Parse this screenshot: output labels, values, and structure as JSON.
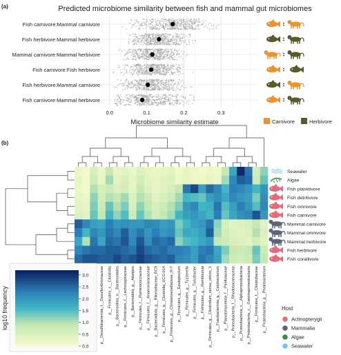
{
  "panel_a": {
    "label": "(a)",
    "chart_data": {
      "type": "scatter",
      "title": "Predicted microbiome similarity between fish and mammal gut microbiomes",
      "xlabel": "Microbiome similarity estimate",
      "ylabel": "",
      "xlim": [
        -0.02,
        0.4
      ],
      "x_ticks": [
        "0.0",
        "0.1",
        "0.2",
        "0.3"
      ],
      "x_tick_values": [
        0.0,
        0.1,
        0.2,
        0.3
      ],
      "grid": true,
      "categories": [
        "Fish carnivore:Mammal carnivore",
        "Fish herbivore:Mammal herbivore",
        "Mammal carnivore:Mammal herbivore",
        "Fish carnivore:Fish herbivore",
        "Fish herbivore:Mammal carnivore",
        "Fish carnivore:Mammal herbivore"
      ],
      "means": [
        0.17,
        0.133,
        0.115,
        0.112,
        0.103,
        0.088
      ],
      "spread_ranges": [
        [
          0.02,
          0.32
        ],
        [
          0.02,
          0.25
        ],
        [
          0.01,
          0.22
        ],
        [
          0.01,
          0.24
        ],
        [
          0.01,
          0.26
        ],
        [
          0.01,
          0.3
        ]
      ],
      "icon_pairs": [
        [
          "fish-carnivore",
          "mammal-carnivore"
        ],
        [
          "fish-herbivore",
          "mammal-herbivore"
        ],
        [
          "mammal-carnivore",
          "mammal-herbivore"
        ],
        [
          "fish-carnivore",
          "fish-herbivore"
        ],
        [
          "fish-herbivore",
          "mammal-carnivore"
        ],
        [
          "fish-carnivore",
          "mammal-herbivore"
        ]
      ],
      "legend": {
        "placement": "bottom-right",
        "entries": [
          {
            "name": "Carnivore",
            "color": "#e8952f"
          },
          {
            "name": "Herbivore",
            "color": "#5b5a2c"
          }
        ]
      }
    }
  },
  "panel_b": {
    "label": "(b)",
    "chart_data": {
      "type": "heatmap",
      "title": "",
      "xlabel": "",
      "ylabel": "",
      "rows": [
        "Seawater",
        "Algae",
        "Fish planktivore",
        "Fish detritivore",
        "Fish omnivore",
        "Fish carnivore",
        "Mammal carnivore",
        "Mammal omnivore",
        "Mammal herbivore",
        "Fish herbivore",
        "Fish corallivore"
      ],
      "row_hosts": [
        "Seawater",
        "Algae",
        "Actinopterygii",
        "Actinopterygii",
        "Actinopterygii",
        "Actinopterygii",
        "Mammalia",
        "Mammalia",
        "Mammalia",
        "Actinopterygii",
        "Actinopterygii"
      ],
      "columns": [
        "p__Bacteroidota_g__Bacteroides",
        "p__Fusobacteriota_g__Fusobacterium",
        "p__Bacteroidota_c__Bacteroidia",
        "p__Desulfobacterota_f__Desulfovibrionaceae",
        "p__Firmicutes_c__Clostridia",
        "p__Bacteroidota_o__Bacteroidales",
        "p__Firmicutes_f__Lachnospiraceae",
        "p__Bacteroidota_g__Alistipes",
        "p__Firmicutes_f__Ruminococcaceae",
        "p__Firmicutes_f__Anaerovoracaceae",
        "p__Bacteroidota_g__Rikenellaceae_RC9",
        "p__Firmicutes_g__Clostridia_UCG-014",
        "p__Firmicutes_g__Christensenellaceae_R-7",
        "p__Firmicutes_g__Epulopiscium",
        "p__Firmicutes_g__Tyzzerella",
        "p__Firmicutes_g__Turicibacter",
        "p__Firmicutes_g__Romboutsia",
        "p__Firmicutes_g__Clostridium_sensu_stricto_1",
        "p__Fusobacteriota_g__Cetobacterium",
        "p__Planctomycetota_f__Pirellulaceae",
        "p__Proteobacteria_f__Rhodobacteraceae",
        "p__Proteobacteria_c__Alphaproteobacteria",
        "p__Proteobacteria_c__Gammaproteobacteria",
        "p__Firmicutes_f__Clostridiaceae",
        "p__Proteobacteria_g__Photobacterium"
      ],
      "values": [
        [
          0.2,
          0.1,
          0.6,
          0.2,
          0.9,
          0.3,
          0.4,
          0.2,
          0.5,
          0.3,
          0.2,
          0.3,
          0.4,
          0.1,
          0.3,
          0.2,
          0.1,
          0.2,
          0.1,
          0.9,
          1.8,
          3.1,
          2.4,
          0.7,
          1.2
        ],
        [
          0.3,
          0.1,
          0.8,
          0.3,
          1.1,
          0.4,
          0.6,
          0.3,
          0.7,
          0.4,
          0.3,
          0.4,
          0.5,
          0.2,
          0.3,
          0.2,
          0.2,
          0.3,
          0.2,
          1.1,
          2.2,
          2.6,
          2.5,
          0.8,
          1.4
        ],
        [
          0.2,
          0.1,
          1.0,
          0.6,
          0.8,
          0.5,
          0.7,
          0.3,
          0.9,
          0.5,
          0.3,
          0.4,
          0.6,
          0.9,
          2.4,
          2.8,
          1.9,
          2.5,
          2.2,
          1.6,
          2.3,
          2.2,
          2.0,
          1.6,
          2.0
        ],
        [
          0.3,
          0.2,
          1.2,
          0.7,
          1.0,
          0.9,
          1.1,
          0.5,
          1.0,
          0.8,
          0.4,
          0.6,
          0.8,
          1.1,
          1.6,
          1.5,
          1.4,
          1.9,
          2.1,
          1.8,
          2.2,
          2.0,
          1.9,
          1.3,
          2.1
        ],
        [
          0.4,
          0.3,
          1.3,
          0.8,
          1.4,
          1.0,
          1.3,
          0.6,
          1.2,
          0.9,
          0.6,
          0.8,
          1.0,
          1.3,
          2.0,
          2.2,
          1.6,
          1.7,
          2.4,
          1.5,
          1.9,
          2.3,
          2.0,
          1.5,
          2.2
        ],
        [
          0.5,
          0.4,
          1.4,
          0.9,
          1.6,
          1.2,
          1.5,
          0.8,
          1.4,
          1.0,
          0.7,
          0.9,
          1.1,
          1.6,
          1.9,
          2.0,
          1.8,
          1.6,
          2.3,
          1.4,
          1.8,
          2.1,
          2.2,
          2.7,
          2.0
        ],
        [
          2.6,
          2.2,
          1.9,
          1.8,
          2.3,
          2.0,
          2.1,
          2.0,
          2.0,
          2.2,
          2.1,
          1.9,
          2.0,
          1.3,
          1.6,
          1.9,
          2.0,
          2.4,
          1.2,
          0.6,
          0.4,
          0.5,
          0.6,
          0.9,
          0.4
        ],
        [
          2.3,
          1.6,
          2.2,
          2.0,
          2.4,
          2.2,
          2.6,
          2.1,
          2.4,
          2.0,
          2.3,
          2.0,
          2.1,
          1.4,
          1.8,
          1.7,
          1.9,
          2.6,
          1.1,
          0.7,
          0.5,
          0.4,
          0.5,
          1.0,
          0.5
        ],
        [
          1.8,
          1.0,
          2.4,
          1.8,
          2.5,
          2.4,
          2.7,
          2.2,
          2.7,
          2.1,
          2.5,
          2.4,
          2.5,
          1.2,
          1.5,
          1.6,
          1.8,
          2.0,
          0.9,
          0.8,
          0.6,
          0.5,
          0.4,
          0.7,
          0.4
        ],
        [
          2.2,
          2.4,
          2.5,
          2.5,
          2.6,
          2.6,
          2.5,
          2.4,
          2.8,
          2.5,
          2.4,
          2.5,
          2.3,
          2.3,
          2.2,
          1.9,
          2.3,
          2.4,
          1.8,
          1.3,
          0.9,
          0.8,
          0.9,
          1.4,
          0.8
        ],
        [
          2.5,
          2.7,
          2.7,
          2.6,
          2.6,
          2.8,
          2.6,
          2.7,
          2.9,
          2.7,
          2.6,
          2.5,
          2.6,
          2.2,
          2.1,
          1.9,
          2.4,
          2.2,
          1.9,
          1.1,
          0.8,
          0.7,
          0.8,
          1.3,
          0.9
        ]
      ],
      "colorbar": {
        "label": "log10 frequency",
        "min": 0.0,
        "max": 3.2,
        "ticks": [
          "0.0",
          "0.5",
          "1.0",
          "1.5",
          "2.0",
          "2.5",
          "3.0"
        ],
        "tick_values": [
          0.0,
          0.5,
          1.0,
          1.5,
          2.0,
          2.5,
          3.0
        ],
        "low_color": "#f7fbcd",
        "mid_color": "#41b6c4",
        "high_color": "#0c1f5e"
      },
      "host_legend": {
        "title": "Host",
        "entries": [
          {
            "name": "Actinopterygii",
            "color": "#e66a7a"
          },
          {
            "name": "Mammalia",
            "color": "#5e6578"
          },
          {
            "name": "Algae",
            "color": "#3a8d3c"
          },
          {
            "name": "Seawater",
            "color": "#72c5ec"
          }
        ]
      }
    }
  }
}
